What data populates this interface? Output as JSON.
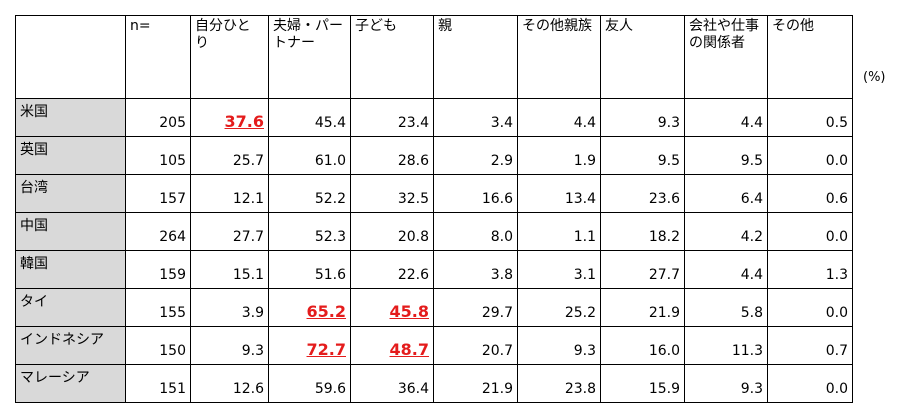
{
  "table": {
    "unit": "(%)",
    "header": [
      "n=",
      "自分ひとり",
      "夫婦・パートナー",
      "子ども",
      "親",
      "その他親族",
      "友人",
      "会社や仕事の関係者",
      "その他"
    ],
    "rows": [
      {
        "label": "米国",
        "values": [
          "205",
          "37.6",
          "45.4",
          "23.4",
          "3.4",
          "4.4",
          "9.3",
          "4.4",
          "0.5"
        ],
        "emphasis": [
          false,
          true,
          false,
          false,
          false,
          false,
          false,
          false,
          false
        ]
      },
      {
        "label": "英国",
        "values": [
          "105",
          "25.7",
          "61.0",
          "28.6",
          "2.9",
          "1.9",
          "9.5",
          "9.5",
          "0.0"
        ],
        "emphasis": [
          false,
          false,
          false,
          false,
          false,
          false,
          false,
          false,
          false
        ]
      },
      {
        "label": "台湾",
        "values": [
          "157",
          "12.1",
          "52.2",
          "32.5",
          "16.6",
          "13.4",
          "23.6",
          "6.4",
          "0.6"
        ],
        "emphasis": [
          false,
          false,
          false,
          false,
          false,
          false,
          false,
          false,
          false
        ]
      },
      {
        "label": "中国",
        "values": [
          "264",
          "27.7",
          "52.3",
          "20.8",
          "8.0",
          "1.1",
          "18.2",
          "4.2",
          "0.0"
        ],
        "emphasis": [
          false,
          false,
          false,
          false,
          false,
          false,
          false,
          false,
          false
        ]
      },
      {
        "label": "韓国",
        "values": [
          "159",
          "15.1",
          "51.6",
          "22.6",
          "3.8",
          "3.1",
          "27.7",
          "4.4",
          "1.3"
        ],
        "emphasis": [
          false,
          false,
          false,
          false,
          false,
          false,
          false,
          false,
          false
        ]
      },
      {
        "label": "タイ",
        "values": [
          "155",
          "3.9",
          "65.2",
          "45.8",
          "29.7",
          "25.2",
          "21.9",
          "5.8",
          "0.0"
        ],
        "emphasis": [
          false,
          false,
          true,
          true,
          false,
          false,
          false,
          false,
          false
        ]
      },
      {
        "label": "インドネシア",
        "values": [
          "150",
          "9.3",
          "72.7",
          "48.7",
          "20.7",
          "9.3",
          "16.0",
          "11.3",
          "0.7"
        ],
        "emphasis": [
          false,
          false,
          true,
          true,
          false,
          false,
          false,
          false,
          false
        ]
      },
      {
        "label": "マレーシア",
        "values": [
          "151",
          "12.6",
          "59.6",
          "36.4",
          "21.9",
          "23.8",
          "15.9",
          "9.3",
          "0.0"
        ],
        "emphasis": [
          false,
          false,
          false,
          false,
          false,
          false,
          false,
          false,
          false
        ]
      }
    ]
  }
}
